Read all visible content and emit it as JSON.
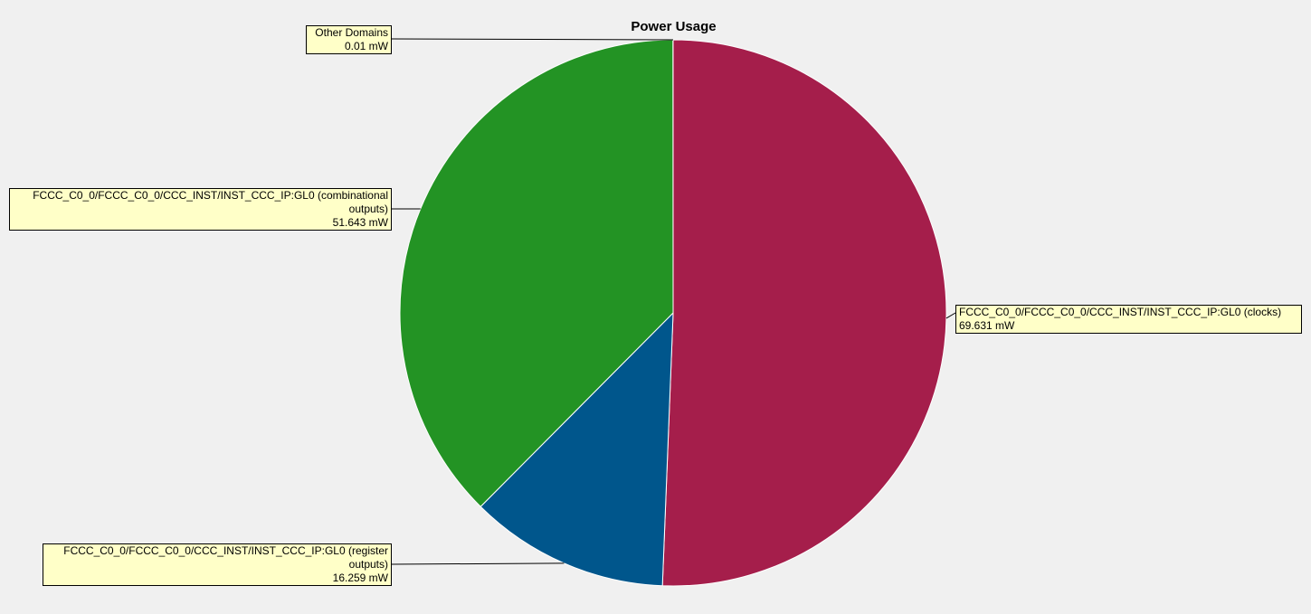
{
  "chart_data": {
    "type": "pie",
    "title": "Power Usage",
    "unit": "mW",
    "slices": [
      {
        "label": "FCCC_C0_0/FCCC_C0_0/CCC_INST/INST_CCC_IP:GL0 (clocks)",
        "label_lines": [
          "FCCC_C0_0/FCCC_C0_0/CCC_INST/INST_CCC_IP:GL0 (clocks)"
        ],
        "value": 69.631,
        "value_text": "69.631 mW",
        "color": "#a51e4b"
      },
      {
        "label": "FCCC_C0_0/FCCC_C0_0/CCC_INST/INST_CCC_IP:GL0 (register outputs)",
        "label_lines": [
          "FCCC_C0_0/FCCC_C0_0/CCC_INST/INST_CCC_IP:GL0 (register",
          "outputs)"
        ],
        "value": 16.259,
        "value_text": "16.259 mW",
        "color": "#00568c"
      },
      {
        "label": "FCCC_C0_0/FCCC_C0_0/CCC_INST/INST_CCC_IP:GL0 (combinational outputs)",
        "label_lines": [
          "FCCC_C0_0/FCCC_C0_0/CCC_INST/INST_CCC_IP:GL0 (combinational",
          "outputs)"
        ],
        "value": 51.643,
        "value_text": "51.643 mW",
        "color": "#239324"
      },
      {
        "label": "Other Domains",
        "label_lines": [
          "Other Domains"
        ],
        "value": 0.01,
        "value_text": "0.01 mW",
        "color": "#ffffff"
      }
    ]
  }
}
